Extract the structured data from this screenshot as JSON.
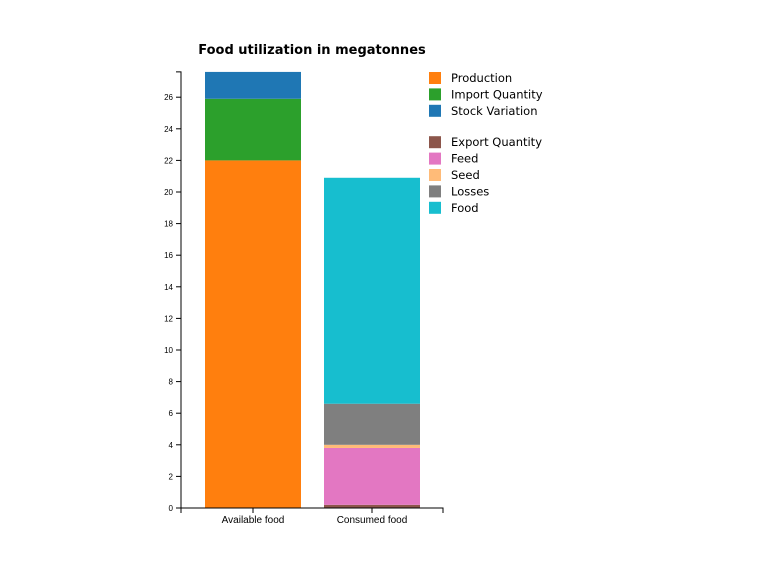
{
  "chart_data": {
    "type": "bar",
    "stacked": true,
    "title": "Food utilization in megatonnes",
    "xlabel": "",
    "ylabel": "",
    "categories": [
      "Available food",
      "Consumed food"
    ],
    "ylim": [
      0,
      27.6
    ],
    "yticks": [
      "0",
      "2",
      "4",
      "6",
      "8",
      "10",
      "12",
      "14",
      "16",
      "18",
      "20",
      "22",
      "24",
      "26"
    ],
    "grid": false,
    "legend_position": "top-right",
    "series": [
      {
        "name": "Production",
        "color": "#ff7f0e",
        "values": [
          22.0,
          0
        ]
      },
      {
        "name": "Import Quantity",
        "color": "#2ca02c",
        "values": [
          3.9,
          0
        ]
      },
      {
        "name": "Stock Variation",
        "color": "#1f77b4",
        "values": [
          1.7,
          0
        ]
      },
      {
        "name": "Export Quantity",
        "color": "#8c564b",
        "values": [
          0,
          0.2
        ]
      },
      {
        "name": "Feed",
        "color": "#e377c2",
        "values": [
          0,
          3.6
        ]
      },
      {
        "name": "Seed",
        "color": "#ffbb78",
        "values": [
          0,
          0.2
        ]
      },
      {
        "name": "Losses",
        "color": "#7f7f7f",
        "values": [
          0,
          2.6
        ]
      },
      {
        "name": "Food",
        "color": "#17becf",
        "values": [
          0,
          14.3
        ]
      }
    ],
    "legend_groups": [
      [
        "Production",
        "Import Quantity",
        "Stock Variation"
      ],
      [
        "Export Quantity",
        "Feed",
        "Seed",
        "Losses",
        "Food"
      ]
    ]
  }
}
